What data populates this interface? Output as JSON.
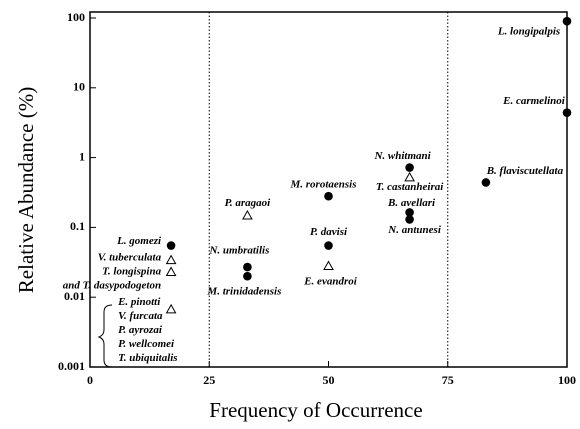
{
  "chart_data": {
    "type": "scatter",
    "x_label": "Frequency of Occurrence",
    "y_label": "Relative  Abundance (%)",
    "xlim": [
      0,
      100
    ],
    "ylim": [
      0.001,
      100
    ],
    "xticks": [
      0,
      25,
      50,
      75,
      100
    ],
    "yticks": [
      0.001,
      0.01,
      0.1,
      1,
      10,
      100
    ],
    "y_scale": "log",
    "vlines": [
      25,
      75
    ],
    "color": "#000000",
    "points": [
      {
        "label": [
          "L. longipalpis"
        ],
        "x": 100,
        "y": 90,
        "marker": "circle"
      },
      {
        "label": [
          "E. carmelinoi"
        ],
        "x": 100,
        "y": 4.4,
        "marker": "circle"
      },
      {
        "label": [
          "B. flaviscutellata"
        ],
        "x": 83,
        "y": 0.44,
        "marker": "circle"
      },
      {
        "label": [
          "N. whitmani"
        ],
        "x": 67,
        "y": 0.72,
        "marker": "circle"
      },
      {
        "label": [
          "T. castanheirai"
        ],
        "x": 67,
        "y": 0.52,
        "marker": "triangle"
      },
      {
        "label": [
          "B. avellari"
        ],
        "x": 67,
        "y": 0.164,
        "marker": "circle"
      },
      {
        "label": [
          "N. antunesi"
        ],
        "x": 67,
        "y": 0.13,
        "marker": "circle"
      },
      {
        "label": [
          "M. rorotaensis"
        ],
        "x": 50,
        "y": 0.28,
        "marker": "circle"
      },
      {
        "label": [
          "P. davisi"
        ],
        "x": 50,
        "y": 0.055,
        "marker": "circle"
      },
      {
        "label": [
          "E. evandroi"
        ],
        "x": 50,
        "y": 0.028,
        "marker": "triangle"
      },
      {
        "label": [
          "P. aragaoi"
        ],
        "x": 33,
        "y": 0.148,
        "marker": "triangle"
      },
      {
        "label": [
          "N. umbratilis"
        ],
        "x": 33,
        "y": 0.027,
        "marker": "circle"
      },
      {
        "label": [
          "M. trinidadensis"
        ],
        "x": 33,
        "y": 0.02,
        "marker": "circle"
      },
      {
        "label": [
          "L. gomezi"
        ],
        "x": 17,
        "y": 0.055,
        "marker": "circle"
      },
      {
        "label": [
          "V. tuberculata"
        ],
        "x": 17,
        "y": 0.034,
        "marker": "triangle"
      },
      {
        "label": [
          "T. longispina",
          "and  T. dasypodogeton"
        ],
        "x": 17,
        "y": 0.023,
        "marker": "triangle"
      },
      {
        "label": [
          "E. pinotti",
          "V. furcata",
          "P. ayrozai",
          "P. wellcomei",
          "T. ubiquitalis"
        ],
        "x": 17,
        "y": 0.0067,
        "marker": "triangle"
      }
    ]
  }
}
